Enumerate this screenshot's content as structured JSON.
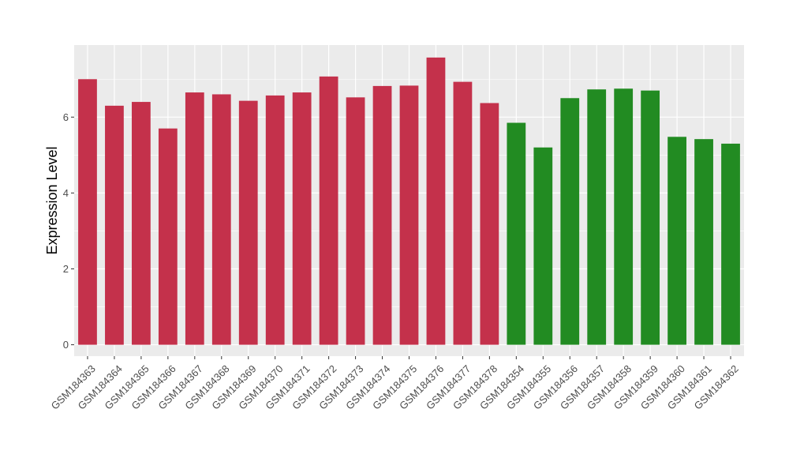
{
  "chart_data": {
    "type": "bar",
    "ylabel": "Expression Level",
    "xlabel": "",
    "ylim": [
      -0.3,
      7.9
    ],
    "yticks": [
      0,
      2,
      4,
      6
    ],
    "grid": true,
    "categories": [
      "GSM184363",
      "GSM184364",
      "GSM184365",
      "GSM184366",
      "GSM184367",
      "GSM184368",
      "GSM184369",
      "GSM184370",
      "GSM184371",
      "GSM184372",
      "GSM184373",
      "GSM184374",
      "GSM184375",
      "GSM184376",
      "GSM184377",
      "GSM184378",
      "GSM184354",
      "GSM184355",
      "GSM184356",
      "GSM184357",
      "GSM184358",
      "GSM184359",
      "GSM184360",
      "GSM184361",
      "GSM184362"
    ],
    "values": [
      7.0,
      6.3,
      6.4,
      5.7,
      6.65,
      6.6,
      6.43,
      6.57,
      6.65,
      7.07,
      6.52,
      6.82,
      6.83,
      7.57,
      6.93,
      6.37,
      5.85,
      5.2,
      6.5,
      6.73,
      6.75,
      6.7,
      5.48,
      5.42,
      5.3
    ],
    "bar_colors": [
      "#c4314b",
      "#c4314b",
      "#c4314b",
      "#c4314b",
      "#c4314b",
      "#c4314b",
      "#c4314b",
      "#c4314b",
      "#c4314b",
      "#c4314b",
      "#c4314b",
      "#c4314b",
      "#c4314b",
      "#c4314b",
      "#c4314b",
      "#c4314b",
      "#228b22",
      "#228b22",
      "#228b22",
      "#228b22",
      "#228b22",
      "#228b22",
      "#228b22",
      "#228b22",
      "#228b22"
    ],
    "panel_background": "#ebebeb",
    "grid_color": "#ffffff"
  }
}
